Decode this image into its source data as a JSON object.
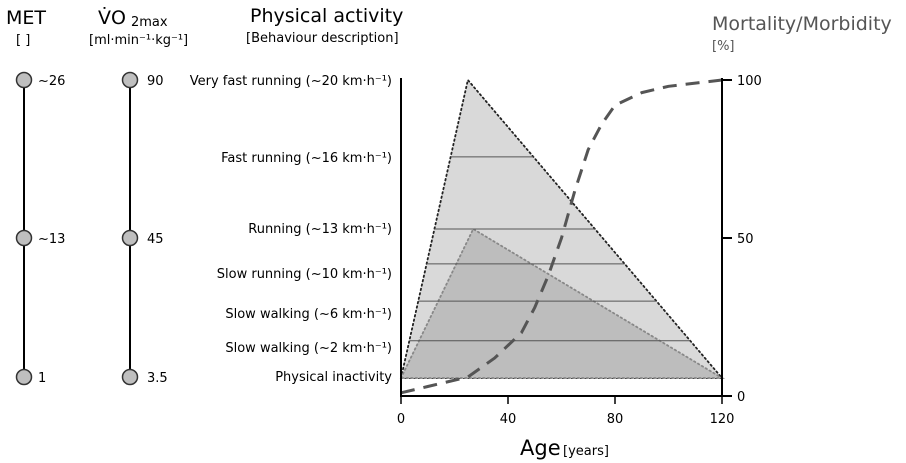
{
  "met": {
    "title": "MET",
    "unit": "[ ]",
    "levels": [
      {
        "label": "~26",
        "value": 26
      },
      {
        "label": "~13",
        "value": 13
      },
      {
        "label": "1",
        "value": 1
      }
    ]
  },
  "vo2": {
    "title_main": "V̇O",
    "title_sub": "2max",
    "unit": "[ml·min⁻¹·kg⁻¹]",
    "levels": [
      {
        "label": "90",
        "value": 90
      },
      {
        "label": "45",
        "value": 45
      },
      {
        "label": "3.5",
        "value": 3.5
      }
    ]
  },
  "activity": {
    "title": "Physical activity",
    "subtitle": "[Behaviour description]",
    "levels": [
      {
        "label": "Very fast running (~20 km·h⁻¹)",
        "fraction": 1.0
      },
      {
        "label": "Fast running (~16 km·h⁻¹)",
        "fraction": 0.742
      },
      {
        "label": "Running (~13 km·h⁻¹)",
        "fraction": 0.5
      },
      {
        "label": "Slow running (~10 km·h⁻¹)",
        "fraction": 0.383
      },
      {
        "label": "Slow walking (~6 km·h⁻¹)",
        "fraction": 0.258
      },
      {
        "label": "Slow walking (~2 km·h⁻¹)",
        "fraction": 0.125
      },
      {
        "label": "Physical inactivity",
        "fraction": 0.0
      }
    ]
  },
  "mortality": {
    "title": "Mortality/Morbidity",
    "unit": "[%]",
    "ticks": [
      {
        "label": "100",
        "value": 100
      },
      {
        "label": "50",
        "value": 50
      },
      {
        "label": "0",
        "value": 0
      }
    ]
  },
  "age_axis": {
    "label": "Age",
    "unit": "[years]",
    "ticks": [
      {
        "label": "0",
        "value": 0
      },
      {
        "label": "40",
        "value": 40
      },
      {
        "label": "80",
        "value": 80
      },
      {
        "label": "120",
        "value": 120
      }
    ]
  },
  "chart_data": {
    "type": "area",
    "xlim": [
      0,
      120
    ],
    "ylim_left_fraction": [
      0,
      1
    ],
    "ylim_right": [
      0,
      100
    ],
    "outer_triangle": {
      "peak_age": 25,
      "peak_fraction": 1.0,
      "end_age": 120
    },
    "inner_triangle": {
      "peak_age": 27,
      "peak_fraction": 0.5,
      "end_age": 120
    },
    "mortality_curve": {
      "x": [
        0,
        10,
        25,
        35,
        45,
        50,
        55,
        60,
        65,
        70,
        75,
        80,
        90,
        100,
        110,
        120
      ],
      "y": [
        1,
        3,
        6,
        12,
        20,
        28,
        38,
        50,
        65,
        78,
        86,
        92,
        96,
        98,
        99,
        100
      ]
    },
    "colors": {
      "outer_fill": "#d9d9d9",
      "inner_fill": "#bdbdbd",
      "dot_outer": "#b8b8b8",
      "line": "#555555"
    }
  }
}
